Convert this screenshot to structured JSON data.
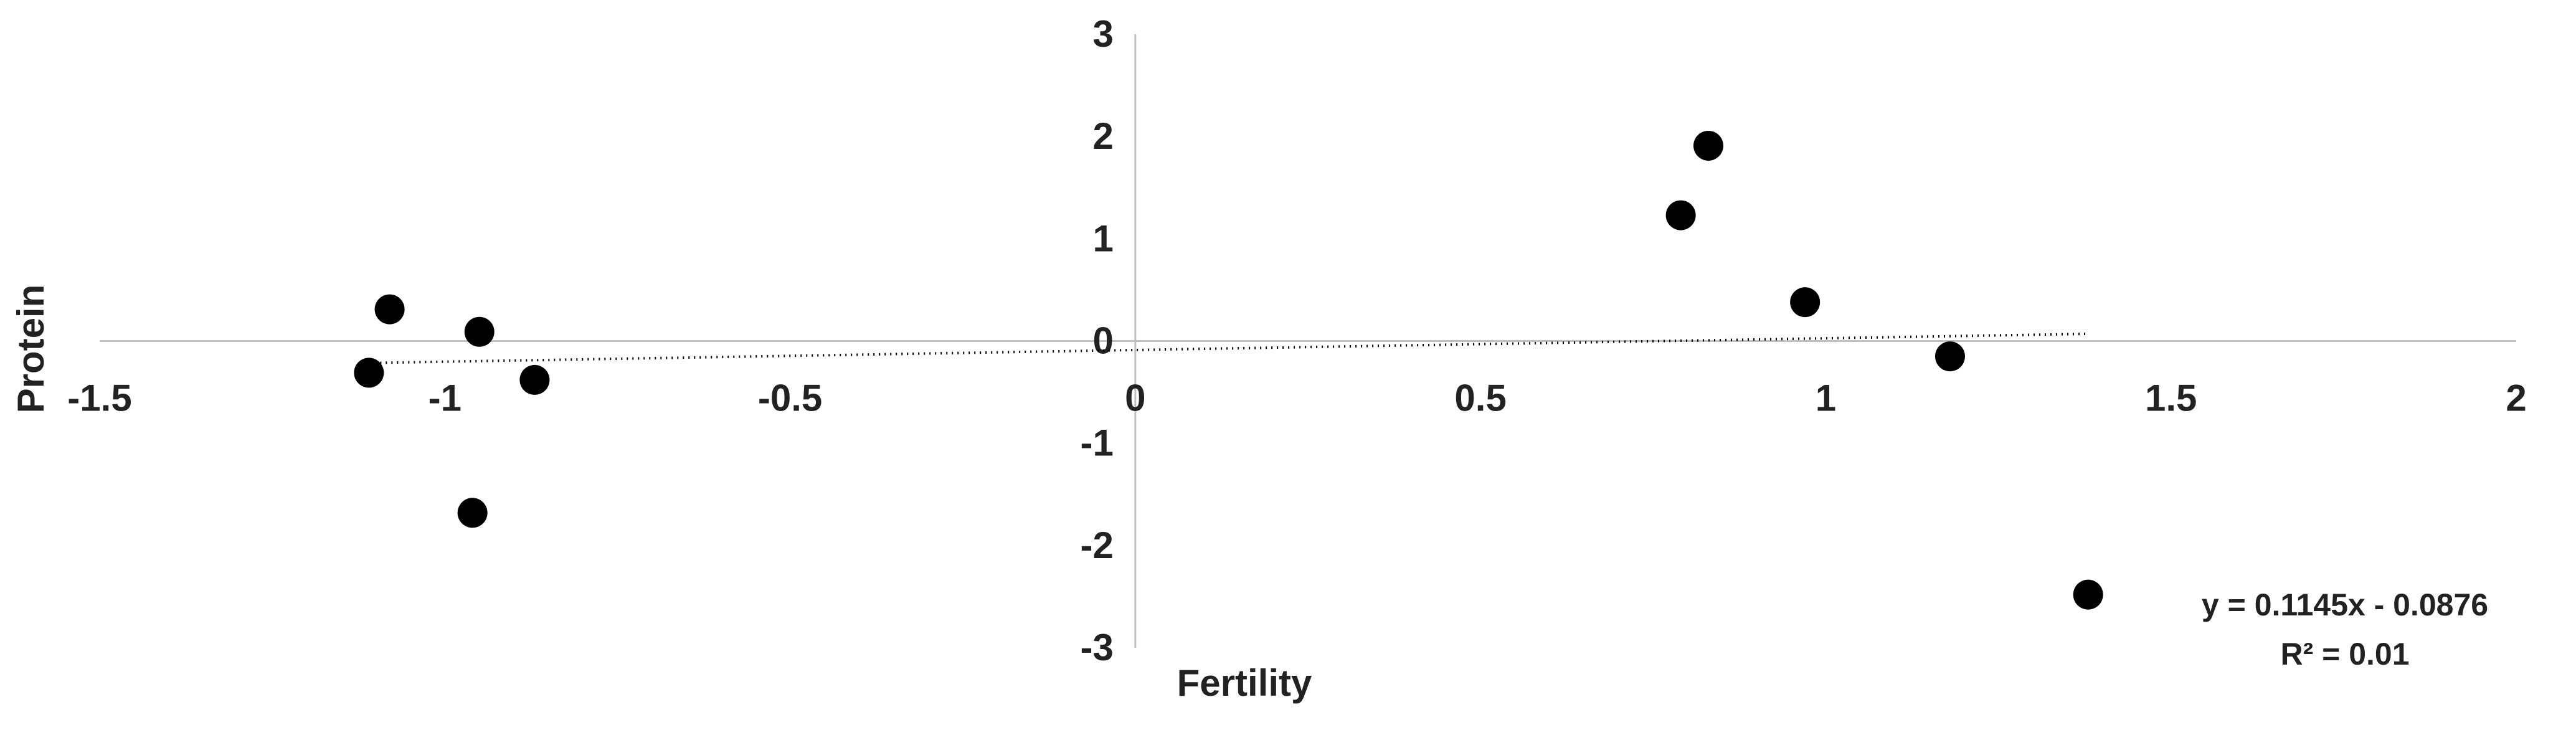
{
  "chart_data": {
    "type": "scatter",
    "xlabel": "Fertility",
    "ylabel": "Protein",
    "xlim": [
      -1.5,
      2
    ],
    "ylim": [
      -3,
      3
    ],
    "x_ticks": [
      -1.5,
      -1,
      -0.5,
      0,
      0.5,
      1,
      1.5,
      2
    ],
    "y_ticks": [
      3,
      2,
      1,
      0,
      -1,
      -2,
      -3
    ],
    "x_tick_labels": [
      "-1.5",
      "-1",
      "-0.5",
      "0",
      "0.5",
      "1",
      "1.5",
      "2"
    ],
    "y_tick_labels": [
      "3",
      "2",
      "1",
      "0",
      "-1",
      "-2",
      "-3"
    ],
    "grid": false,
    "series": [
      {
        "points": [
          {
            "x": -1.11,
            "y": -0.31
          },
          {
            "x": -1.08,
            "y": 0.31
          },
          {
            "x": -0.95,
            "y": 0.09
          },
          {
            "x": -0.96,
            "y": -1.68
          },
          {
            "x": -0.87,
            "y": -0.38
          },
          {
            "x": 0.79,
            "y": 1.23
          },
          {
            "x": 0.83,
            "y": 1.91
          },
          {
            "x": 0.97,
            "y": 0.38
          },
          {
            "x": 1.18,
            "y": -0.15
          },
          {
            "x": 1.38,
            "y": -2.48
          }
        ]
      }
    ],
    "trendline": {
      "type": "linear",
      "slope": 0.1145,
      "intercept": -0.0876,
      "x_range": [
        -1.11,
        1.38
      ],
      "style": "dotted",
      "equation_label": "y = 0.1145x - 0.0876",
      "r2_label": "R² = 0.01"
    },
    "colors": {
      "marker": "#000000",
      "axis": "#bfbfbf",
      "trendline": "#000000",
      "text": "#222222"
    }
  }
}
